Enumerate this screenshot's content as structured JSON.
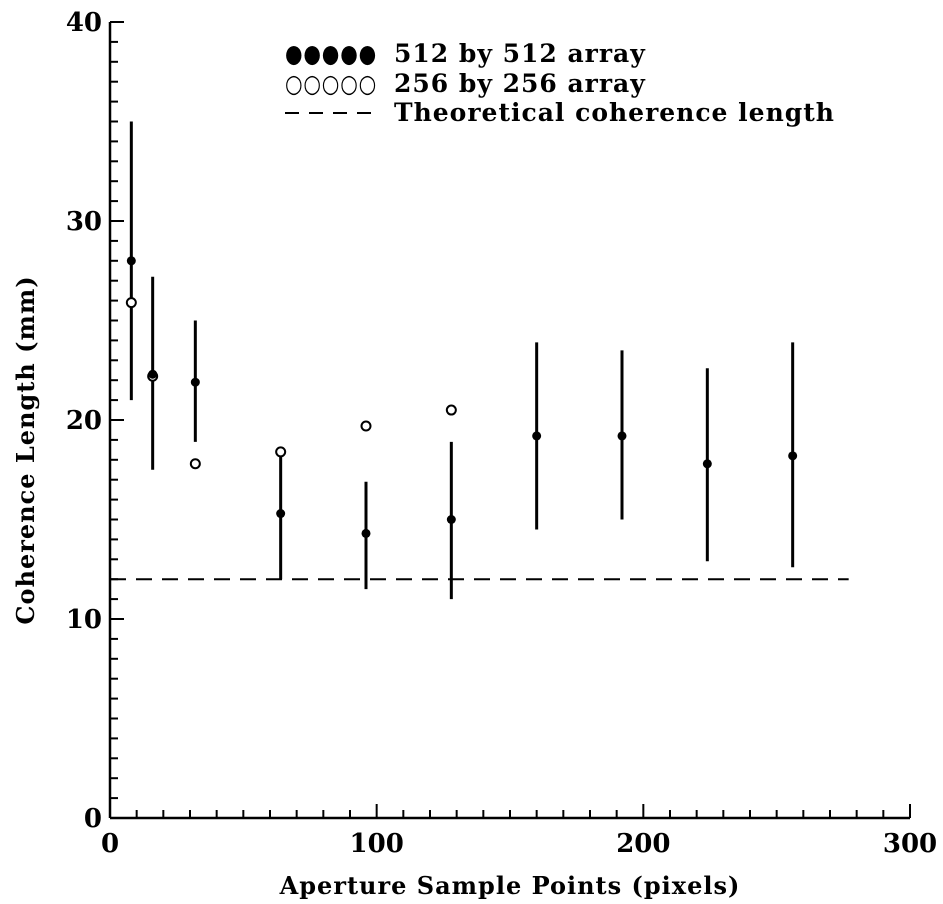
{
  "chart_data": {
    "type": "scatter",
    "xlabel": "Aperture Sample Points (pixels)",
    "ylabel": "Coherence Length (mm)",
    "xlim": [
      0,
      300
    ],
    "ylim": [
      0,
      40
    ],
    "x_ticks": [
      "0",
      "100",
      "200",
      "300"
    ],
    "y_ticks": [
      "0",
      "10",
      "20",
      "30",
      "40"
    ],
    "grid": false,
    "legend_position": "top-center",
    "series": [
      {
        "name": "512 by 512 array",
        "marker": "filled-circle",
        "legend_symbol": "●●●●●",
        "x": [
          8,
          16,
          32,
          64,
          96,
          128,
          160,
          192,
          224,
          256
        ],
        "y": [
          28.0,
          22.3,
          21.9,
          15.3,
          14.3,
          15.0,
          19.2,
          19.2,
          17.8,
          18.2
        ],
        "error_low": [
          21.0,
          17.5,
          18.9,
          12.0,
          11.5,
          11.0,
          14.5,
          15.0,
          12.9,
          12.6
        ],
        "error_high": [
          35.0,
          27.2,
          25.0,
          18.5,
          16.9,
          18.9,
          23.9,
          23.5,
          22.6,
          23.9
        ]
      },
      {
        "name": "256 by 256 array",
        "marker": "open-circle",
        "legend_symbol": "○○○○○",
        "x": [
          8,
          16,
          32,
          64,
          96,
          128
        ],
        "y": [
          25.9,
          22.2,
          17.8,
          18.4,
          19.7,
          20.5
        ]
      },
      {
        "name": "Theoretical coherence length",
        "style": "dashed",
        "legend_symbol": "- - - -",
        "x": [
          0,
          277
        ],
        "y": [
          12.0,
          12.0
        ]
      }
    ]
  }
}
